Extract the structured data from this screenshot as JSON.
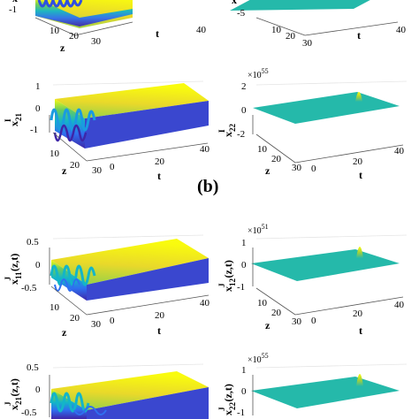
{
  "figure": {
    "panel_label": "(b)"
  },
  "chart_data": [
    {
      "type": "surface",
      "id": "top-left",
      "zlabel_visible": "x",
      "xlabel": "z",
      "ylabel": "t",
      "x_ticks": [
        "10",
        "20",
        "30"
      ],
      "y_ticks": [
        "40"
      ],
      "z_ticks": [
        "-1"
      ],
      "colormap": [
        "#3e26a8",
        "#2f6ff0",
        "#13b5c8",
        "#6bcd5b",
        "#f9fb0e"
      ]
    },
    {
      "type": "surface",
      "id": "top-right",
      "zlabel_visible": "x",
      "ylabel": "t",
      "x_ticks": [
        "10",
        "20",
        "30"
      ],
      "y_ticks": [
        "40"
      ],
      "z_ticks": [
        "-5"
      ],
      "colormap": [
        "#25b9aa"
      ]
    },
    {
      "type": "surface",
      "id": "a-x21",
      "zlabel": "x",
      "zlabel_sub": "21",
      "zlabel_sup": "I",
      "xlabel": "z",
      "ylabel": "t",
      "z_ticks": [
        "1",
        "0",
        "-1"
      ],
      "x_ticks": [
        "10",
        "20",
        "30"
      ],
      "y_ticks": [
        "0",
        "20",
        "40"
      ],
      "zlim": [
        -1,
        1
      ],
      "colormap": [
        "#3e26a8",
        "#2f6ff0",
        "#13b5c8",
        "#6bcd5b",
        "#f9fb0e"
      ]
    },
    {
      "type": "surface",
      "id": "a-x22",
      "zlabel": "x",
      "zlabel_sub": "22",
      "zlabel_sup": "I",
      "xlabel": "z",
      "ylabel": "t",
      "exponent_base": "×10",
      "exponent_power": "55",
      "z_ticks": [
        "2",
        "0",
        "-2"
      ],
      "x_ticks": [
        "10",
        "20",
        "30"
      ],
      "y_ticks": [
        "0",
        "20",
        "40"
      ],
      "zlim": [
        -2,
        2
      ],
      "colormap": [
        "#25b9aa",
        "#f9fb0e"
      ]
    },
    {
      "type": "surface",
      "id": "b-x11",
      "zlabel": "x",
      "zlabel_sub": "11",
      "zlabel_sup": "J",
      "zlabel_arg": "(z,t)",
      "xlabel": "z",
      "ylabel": "t",
      "z_ticks": [
        "0.5",
        "0",
        "-0.5"
      ],
      "x_ticks": [
        "10",
        "20",
        "30"
      ],
      "y_ticks": [
        "0",
        "20",
        "40"
      ],
      "zlim": [
        -0.5,
        0.5
      ],
      "colormap": [
        "#3e26a8",
        "#2f6ff0",
        "#13b5c8",
        "#6bcd5b",
        "#f9fb0e"
      ]
    },
    {
      "type": "surface",
      "id": "b-x12",
      "zlabel": "x",
      "zlabel_sub": "12",
      "zlabel_sup": "J",
      "zlabel_arg": "(z,t)",
      "xlabel": "z",
      "ylabel": "t",
      "exponent_base": "×10",
      "exponent_power": "51",
      "z_ticks": [
        "1",
        "0",
        "-1"
      ],
      "x_ticks": [
        "10",
        "20",
        "30"
      ],
      "y_ticks": [
        "0",
        "20",
        "40"
      ],
      "zlim": [
        -1,
        1
      ],
      "colormap": [
        "#25b9aa",
        "#f9fb0e"
      ]
    },
    {
      "type": "surface",
      "id": "b-x21",
      "zlabel": "x",
      "zlabel_sub": "21",
      "zlabel_sup": "J",
      "zlabel_arg": "(z,t)",
      "z_ticks": [
        "0.5",
        "0",
        "-0.5"
      ],
      "zlim": [
        -0.5,
        0.5
      ],
      "colormap": [
        "#3e26a8",
        "#2f6ff0",
        "#13b5c8",
        "#6bcd5b",
        "#f9fb0e"
      ]
    },
    {
      "type": "surface",
      "id": "b-x22",
      "zlabel": "x",
      "zlabel_sub": "22",
      "zlabel_sup": "J",
      "zlabel_arg": "(z,t)",
      "exponent_base": "×10",
      "exponent_power": "55",
      "z_ticks": [
        "1",
        "0",
        "-1"
      ],
      "zlim": [
        -1,
        1
      ],
      "colormap": [
        "#25b9aa",
        "#f9fb0e"
      ]
    }
  ]
}
